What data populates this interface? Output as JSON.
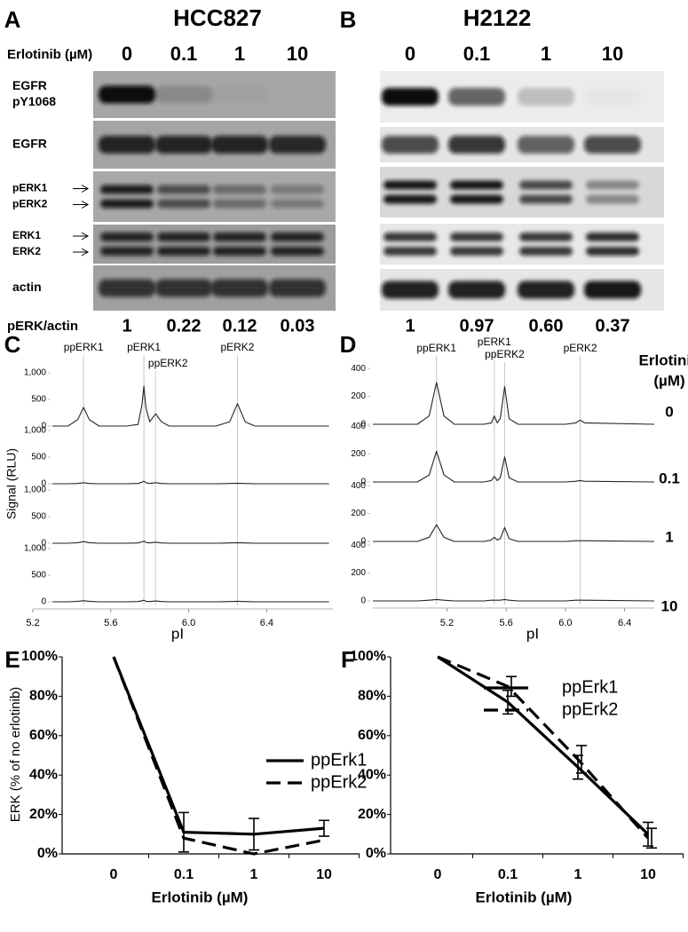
{
  "blots": [
    {
      "label": "A",
      "title": "HCC827",
      "treatment_label": "Erlotinib (µM)",
      "lanes": [
        "0",
        "0.1",
        "1",
        "10"
      ],
      "rows": [
        [
          "EGFR",
          "pY1068"
        ],
        [
          "EGFR"
        ],
        [
          "pERK1",
          "pERK2"
        ],
        [
          "ERK1",
          "ERK2"
        ],
        [
          "actin"
        ]
      ],
      "ratio_label": "pERK/actin",
      "ratios": [
        "1",
        "0.22",
        "0.12",
        "0.03"
      ]
    },
    {
      "label": "B",
      "title": "H2122",
      "lanes": [
        "0",
        "0.1",
        "1",
        "10"
      ],
      "ratios": [
        "1",
        "0.97",
        "0.60",
        "0.37"
      ]
    }
  ],
  "chart_data": [
    {
      "type": "trace",
      "label": "C",
      "x_label": "pI",
      "y_label": "Signal (RLU)",
      "xlim": [
        5.2,
        6.74
      ],
      "xticks": [
        5.2,
        5.6,
        {
          "value": 6,
          "label": "6.0"
        },
        6.4
      ],
      "ylim": [
        0,
        1100
      ],
      "yticks": [
        0,
        500,
        {
          "value": 1000,
          "label": "1,000"
        }
      ],
      "peaks": [
        {
          "label": "ppERK1",
          "x": 5.46
        },
        {
          "label": "pERK1",
          "x": 5.77
        },
        {
          "label": "ppERK2",
          "x": 5.83
        },
        {
          "label": "pERK2",
          "x": 6.25
        }
      ],
      "x": [
        5.3,
        5.38,
        5.43,
        5.46,
        5.49,
        5.54,
        5.68,
        5.74,
        5.76,
        5.77,
        5.78,
        5.8,
        5.83,
        5.86,
        5.9,
        6.14,
        6.21,
        6.25,
        6.29,
        6.34,
        6.72
      ],
      "series": [
        {
          "color": "#222222",
          "values": [
            0,
            0,
            120,
            350,
            120,
            0,
            0,
            30,
            400,
            750,
            350,
            80,
            230,
            80,
            0,
            0,
            80,
            420,
            80,
            0,
            0
          ]
        },
        {
          "color": "#222222",
          "values": [
            0,
            0,
            5,
            20,
            5,
            0,
            0,
            5,
            30,
            50,
            20,
            5,
            20,
            5,
            0,
            0,
            5,
            10,
            5,
            0,
            0
          ]
        },
        {
          "color": "#222222",
          "values": [
            0,
            0,
            10,
            30,
            10,
            0,
            0,
            5,
            25,
            40,
            15,
            5,
            20,
            5,
            0,
            0,
            5,
            10,
            5,
            0,
            0
          ]
        },
        {
          "color": "#222222",
          "values": [
            0,
            0,
            10,
            20,
            10,
            0,
            0,
            5,
            20,
            30,
            10,
            5,
            15,
            5,
            0,
            0,
            5,
            10,
            5,
            0,
            0
          ]
        }
      ]
    },
    {
      "type": "trace",
      "label": "D",
      "x_label": "pI",
      "legend_title": [
        "Erlotinib",
        "(µM)"
      ],
      "xlim": [
        4.7,
        6.6
      ],
      "xticks": [
        5.2,
        5.6,
        {
          "value": 6,
          "label": "6.0"
        },
        6.4
      ],
      "ylim": [
        0,
        420
      ],
      "yticks": [
        0,
        200,
        400
      ],
      "peaks": [
        {
          "label": "ppERK1",
          "x": 5.13
        },
        {
          "label": "pERK1",
          "x": 5.52
        },
        {
          "label": "ppERK2",
          "x": 5.59
        },
        {
          "label": "pERK2",
          "x": 6.1
        }
      ],
      "x": [
        4.7,
        5.0,
        5.08,
        5.13,
        5.18,
        5.25,
        5.45,
        5.5,
        5.52,
        5.54,
        5.56,
        5.59,
        5.62,
        5.68,
        6.0,
        6.07,
        6.1,
        6.13,
        6.6
      ],
      "series": [
        {
          "name": "0",
          "color": "#222222",
          "values": [
            0,
            0,
            60,
            300,
            60,
            0,
            0,
            10,
            60,
            10,
            40,
            270,
            40,
            0,
            0,
            10,
            30,
            10,
            0
          ]
        },
        {
          "name": "0.1",
          "color": "#222222",
          "values": [
            0,
            0,
            50,
            220,
            50,
            0,
            0,
            10,
            40,
            10,
            30,
            180,
            30,
            0,
            0,
            5,
            10,
            5,
            0
          ]
        },
        {
          "name": "1",
          "color": "#222222",
          "values": [
            0,
            0,
            30,
            120,
            30,
            0,
            0,
            10,
            30,
            10,
            20,
            100,
            20,
            0,
            0,
            5,
            5,
            5,
            0
          ]
        },
        {
          "name": "10",
          "color": "#222222",
          "values": [
            0,
            0,
            5,
            10,
            5,
            0,
            0,
            5,
            5,
            5,
            5,
            10,
            5,
            0,
            0,
            5,
            5,
            5,
            0
          ]
        }
      ]
    },
    {
      "type": "line",
      "label": "E",
      "x_label": "Erlotinib (µM)",
      "y_label": "ERK (% of no erlotinib)",
      "legend": "upper right",
      "categories": [
        "0",
        "0.1",
        "1",
        "10"
      ],
      "ylim": [
        0,
        100
      ],
      "yticks": [
        {
          "value": 0,
          "label": "0%"
        },
        {
          "value": 20,
          "label": "20%"
        },
        {
          "value": 40,
          "label": "40%"
        },
        {
          "value": 60,
          "label": "60%"
        },
        {
          "value": 80,
          "label": "80%"
        },
        {
          "value": 100,
          "label": "100%"
        }
      ],
      "series": [
        {
          "name": "ppErk1",
          "color": "#000000",
          "dash": false,
          "values": [
            100,
            11,
            10,
            13
          ],
          "errors": [
            null,
            10,
            8,
            4
          ]
        },
        {
          "name": "ppErk2",
          "color": "#000000",
          "dash": true,
          "values": [
            100,
            8,
            0,
            7
          ]
        }
      ]
    },
    {
      "type": "line",
      "label": "F",
      "x_label": "Erlotinib (µM)",
      "legend": "upper right",
      "categories": [
        "0",
        "0.1",
        "1",
        "10"
      ],
      "ylim": [
        0,
        100
      ],
      "yticks": [
        {
          "value": 0,
          "label": "0%"
        },
        {
          "value": 20,
          "label": "20%"
        },
        {
          "value": 40,
          "label": "40%"
        },
        {
          "value": 60,
          "label": "60%"
        },
        {
          "value": 80,
          "label": "80%"
        },
        {
          "value": 100,
          "label": "100%"
        }
      ],
      "series": [
        {
          "name": "ppErk1",
          "color": "#000000",
          "dash": false,
          "values": [
            100,
            77,
            44,
            10
          ],
          "errors": [
            null,
            6,
            6,
            6
          ]
        },
        {
          "name": "ppErk2",
          "color": "#000000",
          "dash": true,
          "values": [
            100,
            85,
            48,
            8
          ],
          "errors": [
            null,
            5,
            7,
            5
          ]
        }
      ]
    }
  ]
}
